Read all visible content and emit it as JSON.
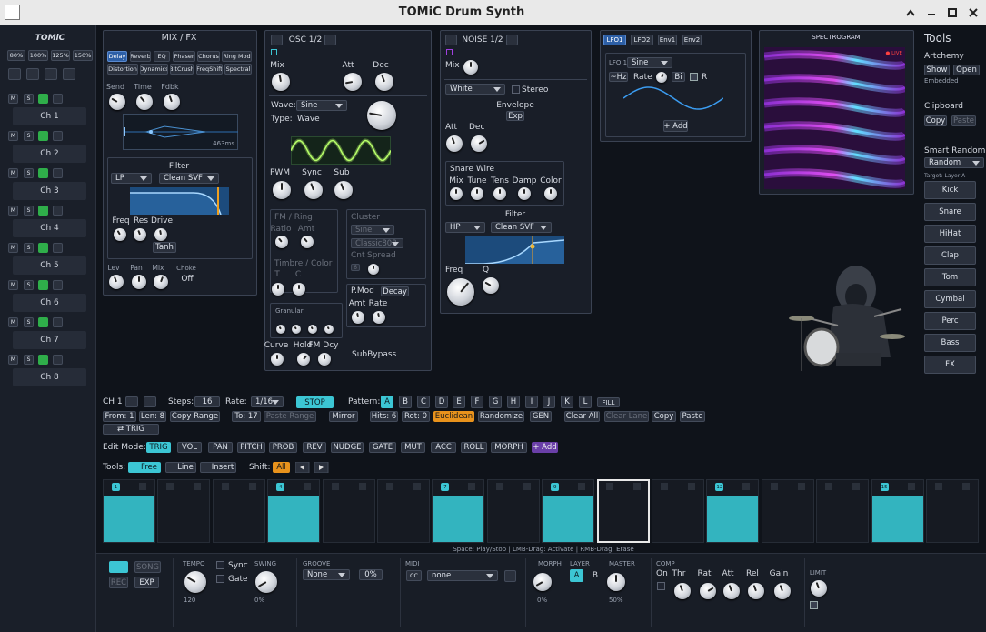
{
  "window": {
    "title": "TOMiC Drum Synth"
  },
  "sidebar": {
    "logo": "TOMiC",
    "zoom": [
      "80%",
      "100%",
      "125%",
      "150%"
    ],
    "mute": "M",
    "solo": "S",
    "channels": [
      "Ch 1",
      "Ch 2",
      "Ch 3",
      "Ch 4",
      "Ch 5",
      "Ch 6",
      "Ch 7",
      "Ch 8"
    ]
  },
  "mix_fx": {
    "title": "MIX / FX",
    "tabs": [
      "Delay",
      "Reverb",
      "EQ",
      "Phaser",
      "Chorus",
      "Ring Mod",
      "Distortion",
      "Dynamics",
      "BitCrush",
      "FreqShift",
      "Spectral"
    ],
    "active_tab": 0,
    "delay_knobs": [
      "Send",
      "Time",
      "Fdbk"
    ],
    "delay_time": "463ms",
    "filter": {
      "title": "Filter",
      "type": "LP",
      "model": "Clean SVF",
      "knobs": [
        "Freq",
        "Res",
        "Drive"
      ],
      "drive_mode": "Tanh"
    },
    "out_knobs": [
      "Lev",
      "Pan",
      "Mix"
    ],
    "choke": {
      "label": "Choke",
      "value": "Off"
    }
  },
  "osc": {
    "title": "OSC 1/2",
    "mix": "Mix",
    "att": "Att",
    "dec": "Dec",
    "wave_label": "Wave:",
    "wave": "Sine",
    "type_label": "Type:",
    "type": "Wave",
    "knobs": [
      "PWM",
      "Sync",
      "Sub"
    ],
    "fm_ring": {
      "title": "FM / Ring",
      "knobs": [
        "Ratio",
        "Amt"
      ]
    },
    "timbre": {
      "title": "Timbre / Color",
      "knobs": [
        "T",
        "C"
      ]
    },
    "granular": {
      "title": "Granular"
    },
    "cluster": {
      "title": "Cluster",
      "wave": "Sine",
      "model": "Classic808",
      "knobs": [
        "Cnt",
        "Spread"
      ],
      "count": "6"
    },
    "pmod": {
      "title": "P.Mod",
      "mode": "Decay",
      "knobs": [
        "Amt",
        "Rate"
      ]
    },
    "env_knobs": [
      "Curve",
      "Hold",
      "FM Dcy"
    ],
    "sub_bypass": "SubBypass"
  },
  "noise": {
    "title": "NOISE 1/2",
    "mix": "Mix",
    "color": "White",
    "stereo": "Stereo",
    "envelope": "Envelope",
    "env_mode": "Exp",
    "knobs": [
      "Att",
      "Dec"
    ],
    "snare_wire": {
      "title": "Snare Wire",
      "knobs": [
        "Mix",
        "Tune",
        "Tens",
        "Damp",
        "Color"
      ]
    },
    "filter": {
      "title": "Filter",
      "type": "HP",
      "model": "Clean SVF",
      "knobs": [
        "Freq",
        "Q"
      ]
    }
  },
  "mod": {
    "tabs": [
      "LFO1",
      "LFO2",
      "Env1",
      "Env2"
    ],
    "lfo_label": "LFO 1",
    "shape": "Sine",
    "hz": "~Hz",
    "rate": "Rate",
    "bi": "Bi",
    "retrig": "R",
    "add": "+ Add"
  },
  "spectrogram": {
    "title": "SPECTROGRAM",
    "live": "● LIVE"
  },
  "tools": {
    "title": "Tools",
    "artchemy": {
      "title": "Artchemy",
      "show": "Show",
      "open": "Open",
      "status": "Embedded"
    },
    "clipboard": {
      "title": "Clipboard",
      "copy": "Copy",
      "paste": "Paste"
    },
    "smart_random": {
      "title": "Smart Random",
      "mode": "Random",
      "target": "Target: Layer A",
      "instruments": [
        "Kick",
        "Snare",
        "HiHat",
        "Clap",
        "Tom",
        "Cymbal",
        "Perc",
        "Bass",
        "FX"
      ]
    }
  },
  "sequencer": {
    "channel": "CH 1",
    "steps_label": "Steps:",
    "steps": "16",
    "rate_label": "Rate:",
    "rate": "1/16",
    "stop": "STOP",
    "pattern_label": "Pattern:",
    "patterns": [
      "A",
      "B",
      "C",
      "D",
      "E",
      "F",
      "G",
      "H",
      "I",
      "J",
      "K",
      "L"
    ],
    "fill": "FILL",
    "range": [
      "From: 1",
      "Len: 8",
      "Copy Range",
      "To: 17",
      "Paste Range",
      "Mirror",
      "Hits: 6",
      "Rot: 0",
      "Euclidean",
      "Randomize",
      "GEN",
      "Clear All",
      "Clear Lane",
      "Copy",
      "Paste"
    ],
    "trig": "⇄ TRIG",
    "edit_mode_label": "Edit Mode:",
    "edit_modes": [
      "TRIG",
      "VOL",
      "PAN",
      "PITCH",
      "PROB",
      "REV",
      "NUDGE",
      "GATE",
      "MUT",
      "ACC",
      "ROLL",
      "MORPH"
    ],
    "add_lane": "+ Add",
    "tools_label": "Tools:",
    "tools": [
      "Free",
      "Line",
      "Insert"
    ],
    "shift_label": "Shift:",
    "shift": "All",
    "step_labels": [
      "1",
      null,
      null,
      "4",
      null,
      null,
      "7",
      null,
      "9",
      null,
      null,
      "12",
      null,
      null,
      "15",
      null
    ],
    "selected_step": 9,
    "hint": "Space: Play/Stop | LMB-Drag: Activate | RMB-Drag: Erase"
  },
  "transport": {
    "song": "SONG",
    "rec": "REC",
    "exp": "EXP",
    "tempo": {
      "label": "TEMPO",
      "value": "120"
    },
    "sync": "Sync",
    "gate": "Gate",
    "swing": {
      "label": "SWING",
      "value": "0%"
    },
    "groove": {
      "label": "GROOVE",
      "template": "None",
      "amount": "0%"
    },
    "midi": {
      "label": "MIDI",
      "mode": "CC",
      "target": "none"
    },
    "morph": {
      "label": "MORPH",
      "value": "0%"
    },
    "layer": {
      "label": "LAYER",
      "options": [
        "A",
        "B"
      ]
    },
    "master": {
      "label": "MASTER",
      "value": "50%"
    },
    "comp": {
      "label": "COMP",
      "on": "On",
      "knobs": [
        "Thr",
        "Rat",
        "Att",
        "Rel",
        "Gain"
      ]
    },
    "limit": "LIMIT"
  }
}
